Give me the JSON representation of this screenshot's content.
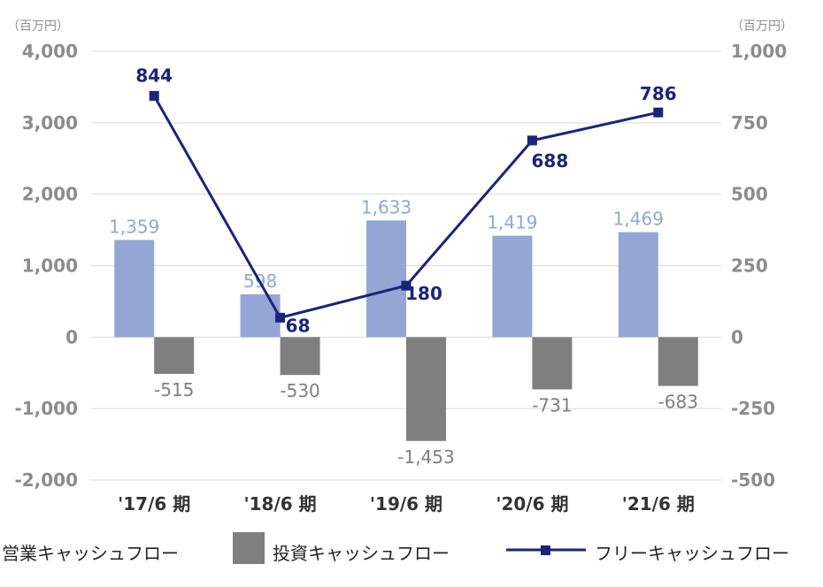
{
  "chart_data": {
    "type": "bar+line",
    "categories": [
      "'17/6 期",
      "'18/6 期",
      "'19/6 期",
      "'20/6 期",
      "'21/6 期"
    ],
    "series": [
      {
        "name": "営業キャッシュフロー",
        "axis": "left",
        "kind": "bar",
        "values": [
          1359,
          598,
          1633,
          1419,
          1469
        ],
        "labels": [
          "1,359",
          "598",
          "1,633",
          "1,419",
          "1,469"
        ],
        "color": "#93a7d4"
      },
      {
        "name": "投資キャッシュフロー",
        "axis": "left",
        "kind": "bar",
        "values": [
          -515,
          -530,
          -1453,
          -731,
          -683
        ],
        "labels": [
          "-515",
          "-530",
          "-1,453",
          "-731",
          "-683"
        ],
        "color": "#7f7f7f"
      },
      {
        "name": "フリーキャッシュフロー",
        "axis": "right",
        "kind": "line",
        "values": [
          844,
          68,
          180,
          688,
          786
        ],
        "labels": [
          "844",
          "68",
          "180",
          "688",
          "786"
        ],
        "color": "#1a237e"
      }
    ],
    "left_axis": {
      "unit": "（百万円）",
      "ylim": [
        -2000,
        4000
      ],
      "ticks": [
        "4,000",
        "3,000",
        "2,000",
        "1,000",
        "0",
        "-1,000",
        "-2,000"
      ]
    },
    "right_axis": {
      "unit": "（百万円）",
      "ylim": [
        -500,
        1000
      ],
      "ticks": [
        "1,000",
        "750",
        "500",
        "250",
        "0",
        "-250",
        "-500"
      ]
    },
    "grid": "horizontal",
    "legend_position": "bottom"
  }
}
